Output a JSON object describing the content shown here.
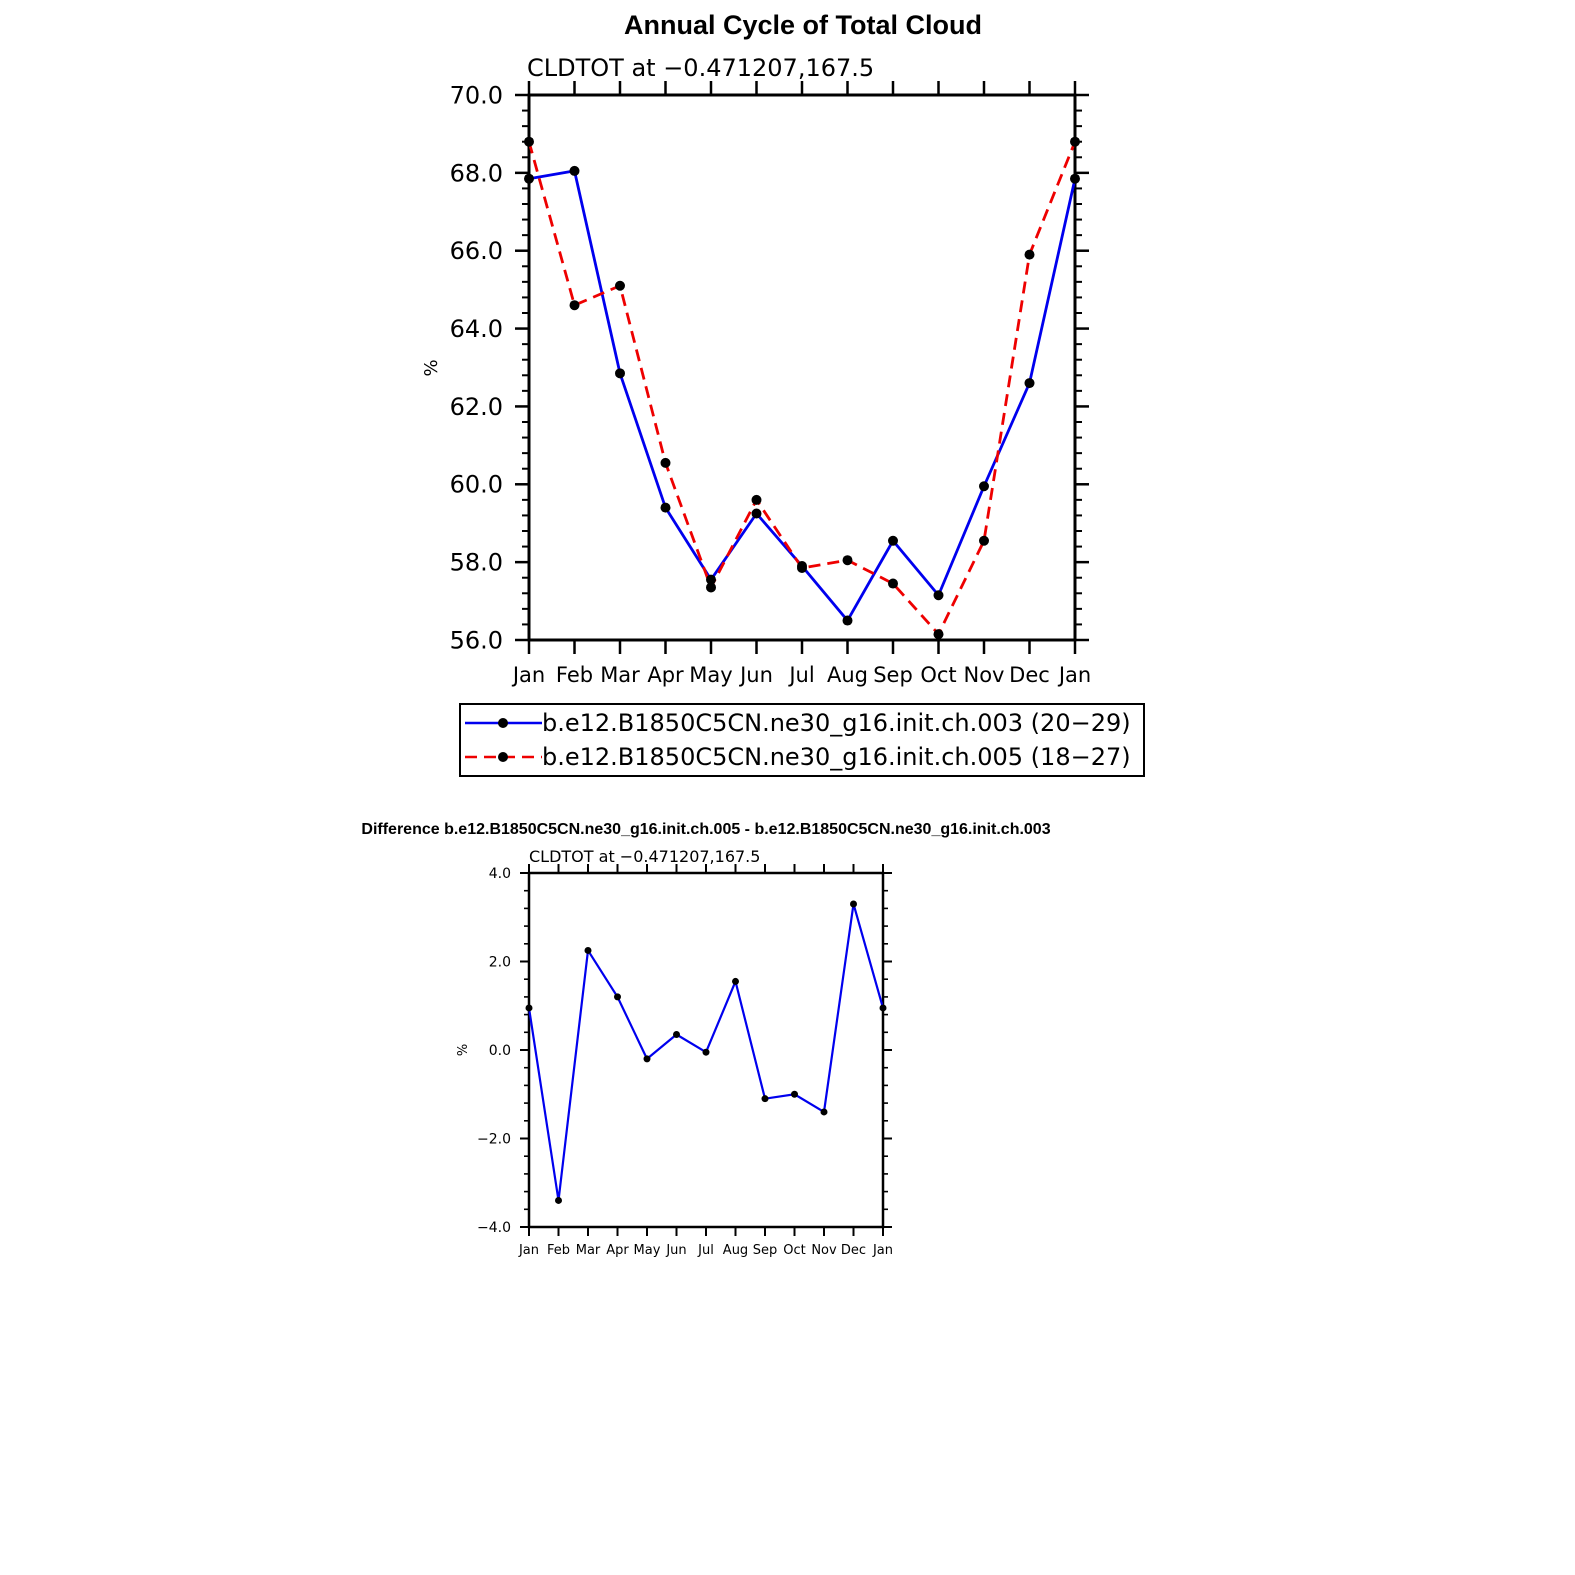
{
  "chart_data": [
    {
      "type": "line",
      "title": "Annual Cycle of Total Cloud",
      "subtitle": "CLDTOT at −0.471207,167.5",
      "ylabel": "%",
      "xlabel": "",
      "categories": [
        "Jan",
        "Feb",
        "Mar",
        "Apr",
        "May",
        "Jun",
        "Jul",
        "Aug",
        "Sep",
        "Oct",
        "Nov",
        "Dec",
        "Jan"
      ],
      "ylim": [
        56.0,
        70.0
      ],
      "yticks": [
        "56.0",
        "58.0",
        "60.0",
        "62.0",
        "64.0",
        "66.0",
        "68.0",
        "70.0"
      ],
      "series": [
        {
          "name": "b.e12.B1850C5CN.ne30_g16.init.ch.003 (20−29)",
          "color": "#0000ee",
          "dash": "solid",
          "values": [
            67.85,
            68.05,
            62.85,
            59.4,
            57.55,
            59.25,
            57.9,
            56.5,
            58.55,
            57.15,
            59.95,
            62.6,
            67.85
          ]
        },
        {
          "name": "b.e12.B1850C5CN.ne30_g16.init.ch.005 (18−27)",
          "color": "#ee0000",
          "dash": "dashed",
          "values": [
            68.8,
            64.6,
            65.1,
            60.55,
            57.35,
            59.6,
            57.85,
            58.05,
            57.45,
            56.15,
            58.55,
            65.9,
            68.8
          ]
        }
      ],
      "legend": "bottom"
    },
    {
      "type": "line",
      "title": "Difference b.e12.B1850C5CN.ne30_g16.init.ch.005 - b.e12.B1850C5CN.ne30_g16.init.ch.003",
      "subtitle": "CLDTOT at −0.471207,167.5",
      "ylabel": "%",
      "xlabel": "",
      "categories": [
        "Jan",
        "Feb",
        "Mar",
        "Apr",
        "May",
        "Jun",
        "Jul",
        "Aug",
        "Sep",
        "Oct",
        "Nov",
        "Dec",
        "Jan"
      ],
      "ylim": [
        -4.0,
        4.0
      ],
      "yticks": [
        "−4.0",
        "−2.0",
        "0.0",
        "2.0",
        "4.0"
      ],
      "series": [
        {
          "name": "Difference",
          "color": "#0000ee",
          "dash": "solid",
          "values": [
            0.95,
            -3.4,
            2.25,
            1.2,
            -0.2,
            0.35,
            -0.05,
            1.55,
            -1.1,
            -1.0,
            -1.4,
            3.3,
            0.95
          ]
        }
      ]
    }
  ]
}
